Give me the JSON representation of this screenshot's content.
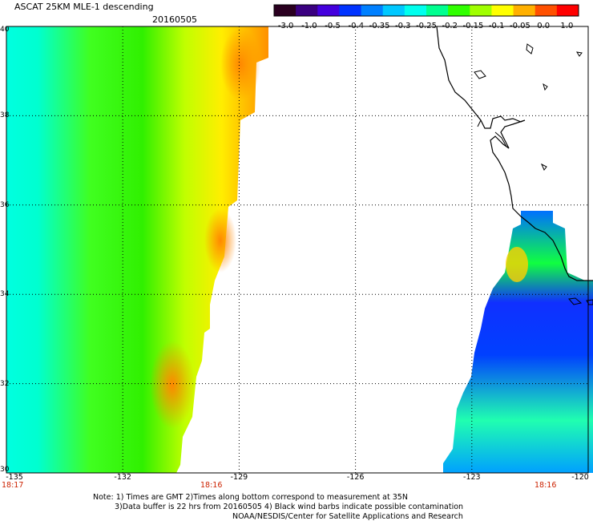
{
  "title": "ASCAT 25KM MLE-1 descending",
  "date": "20160505",
  "colorbar": {
    "ticks": [
      "-3.0",
      "-1.0",
      "-0.5",
      "-0.4",
      "-0.35",
      "-0.3",
      "-0.25",
      "-0.2",
      "-0.15",
      "-0.1",
      "-0.05",
      "0.0",
      "1.0"
    ],
    "colors": [
      "#2a0020",
      "#3a0080",
      "#4400dd",
      "#0033ff",
      "#0080ff",
      "#00c8ff",
      "#00ffee",
      "#00ff90",
      "#30ff00",
      "#a0ff00",
      "#ffff00",
      "#ffb000",
      "#ff5000",
      "#ff0000"
    ]
  },
  "map": {
    "lon_range": [
      -135,
      -120
    ],
    "lat_range": [
      30,
      40
    ],
    "lat_ticks": [
      "40",
      "38",
      "36",
      "34",
      "32",
      "30"
    ],
    "lon_ticks": [
      "-135",
      "-132",
      "-129",
      "-126",
      "-123",
      "-120"
    ],
    "swath_colors": {
      "west": "green-yellow-orange",
      "east": "blue-green"
    }
  },
  "times": {
    "left": "18:17",
    "mid": "18:16",
    "right": "18:16"
  },
  "notes": {
    "line1": "Note: 1) Times are GMT  2)Times along bottom correspond to measurement at 35N",
    "line2": "3)Data buffer is 22 hrs from 20160505  4) Black wind barbs indicate possible contamination",
    "line3": "NOAA/NESDIS/Center for Satellite Applications and Research"
  }
}
